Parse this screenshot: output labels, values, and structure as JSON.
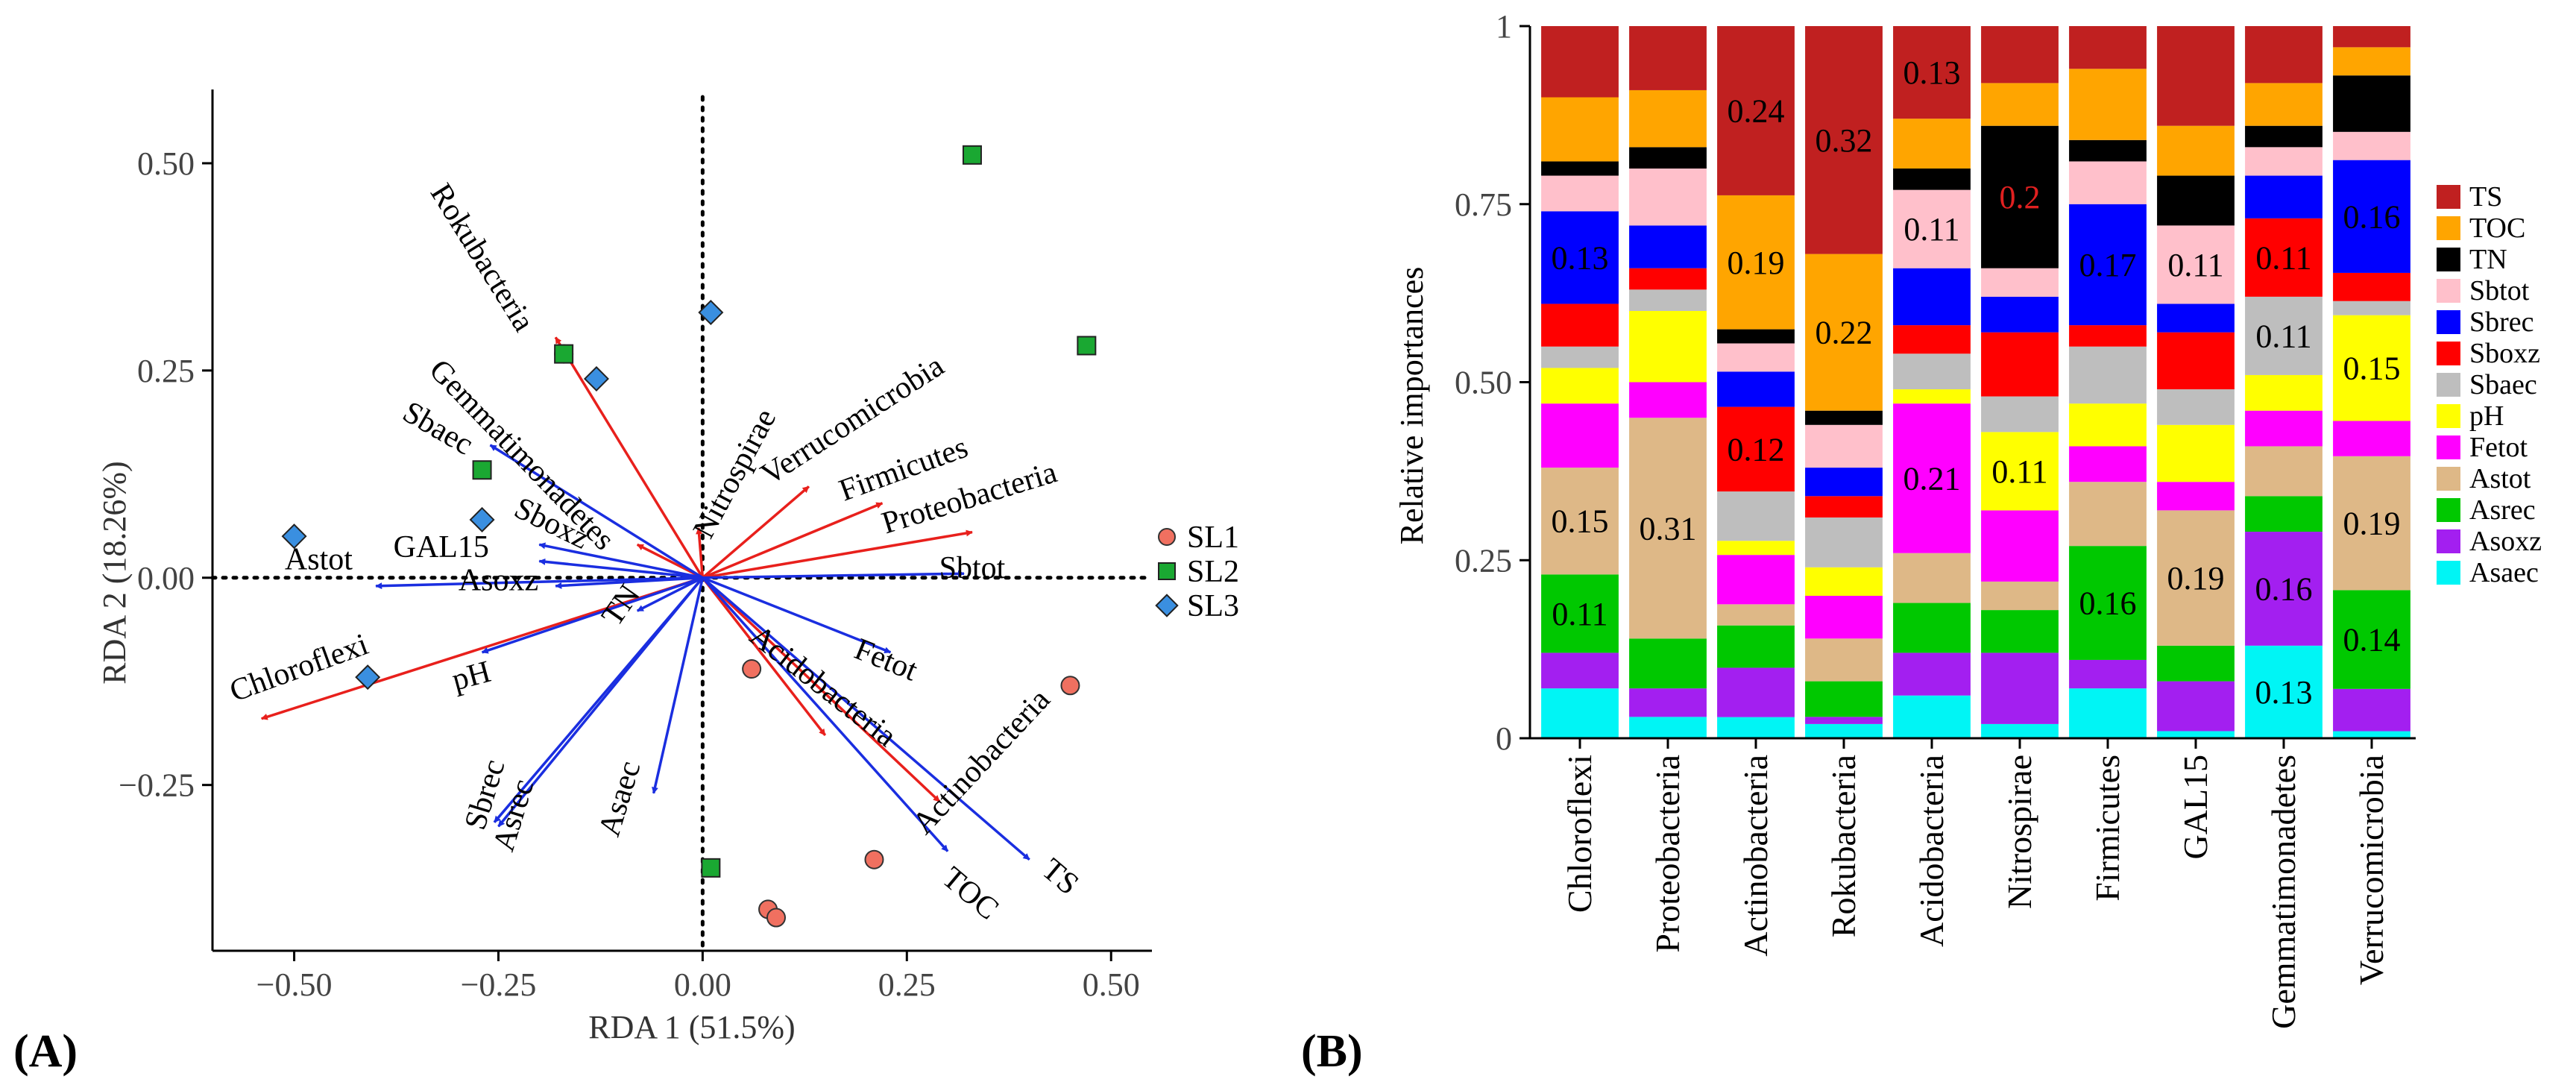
{
  "panels": {
    "a_label": "(A)",
    "b_label": "(B)"
  },
  "colors": {
    "species_arrow": "#e8201c",
    "env_arrow": "#1a2ee0",
    "SL1": "#f07060",
    "SL2": "#1aa832",
    "SL3": "#3a8fe0"
  },
  "chart_data": [
    {
      "type": "scatter",
      "xlabel": "RDA 1 (51.5%)",
      "ylabel": "RDA 2 (18.26%)",
      "xlim": [
        -0.6,
        0.55
      ],
      "ylim": [
        -0.45,
        0.58
      ],
      "xticks": [
        -0.5,
        -0.25,
        0.0,
        0.25,
        0.5
      ],
      "xtick_labels": [
        "−0.50",
        "−0.25",
        "0.00",
        "0.25",
        "0.50"
      ],
      "yticks": [
        -0.25,
        0.0,
        0.25,
        0.5
      ],
      "ytick_labels": [
        "−0.25",
        "0.00",
        "0.25",
        "0.50"
      ],
      "zero_lines": "dotted",
      "legend": {
        "position": "right",
        "entries": [
          {
            "name": "SL1",
            "shape": "circle",
            "color": "#f07060"
          },
          {
            "name": "SL2",
            "shape": "square",
            "color": "#1aa832"
          },
          {
            "name": "SL3",
            "shape": "diamond",
            "color": "#3a8fe0"
          }
        ]
      },
      "points": [
        {
          "group": "SL1",
          "x": -0.17,
          "y": 0.27
        },
        {
          "group": "SL1",
          "x": 0.06,
          "y": -0.11
        },
        {
          "group": "SL1",
          "x": 0.08,
          "y": -0.4
        },
        {
          "group": "SL1",
          "x": 0.09,
          "y": -0.41
        },
        {
          "group": "SL1",
          "x": 0.21,
          "y": -0.34
        },
        {
          "group": "SL1",
          "x": 0.45,
          "y": -0.13
        },
        {
          "group": "SL2",
          "x": -0.17,
          "y": 0.27
        },
        {
          "group": "SL2",
          "x": -0.27,
          "y": 0.13
        },
        {
          "group": "SL2",
          "x": 0.33,
          "y": 0.51
        },
        {
          "group": "SL2",
          "x": 0.47,
          "y": 0.28
        },
        {
          "group": "SL2",
          "x": 0.01,
          "y": -0.35
        },
        {
          "group": "SL3",
          "x": -0.5,
          "y": 0.05
        },
        {
          "group": "SL3",
          "x": -0.27,
          "y": 0.07
        },
        {
          "group": "SL3",
          "x": -0.13,
          "y": 0.24
        },
        {
          "group": "SL3",
          "x": 0.01,
          "y": 0.32
        },
        {
          "group": "SL3",
          "x": -0.41,
          "y": -0.12
        }
      ],
      "species_arrows": [
        {
          "name": "Rokubacteria",
          "x": -0.18,
          "y": 0.29,
          "lx": -0.28,
          "ly": 0.38,
          "rot": 58
        },
        {
          "name": "Gemmatimonadetes",
          "x": -0.08,
          "y": 0.04,
          "lx": -0.23,
          "ly": 0.14,
          "rot": 46
        },
        {
          "name": "Nitrospirae",
          "x": -0.005,
          "y": 0.06,
          "lx": 0.05,
          "ly": 0.12,
          "rot": -62
        },
        {
          "name": "Verrucomicrobia",
          "x": 0.13,
          "y": 0.11,
          "lx": 0.19,
          "ly": 0.18,
          "rot": -33
        },
        {
          "name": "Firmicutes",
          "x": 0.22,
          "y": 0.09,
          "lx": 0.25,
          "ly": 0.12,
          "rot": -20
        },
        {
          "name": "Proteobacteria",
          "x": 0.33,
          "y": 0.055,
          "lx": 0.33,
          "ly": 0.085,
          "rot": -17
        },
        {
          "name": "Acidobacteria",
          "x": 0.15,
          "y": -0.19,
          "lx": 0.14,
          "ly": -0.14,
          "rot": 38
        },
        {
          "name": "Actinobacteria",
          "x": 0.29,
          "y": -0.27,
          "lx": 0.35,
          "ly": -0.23,
          "rot": -47
        },
        {
          "name": "Chloroflexi",
          "x": -0.54,
          "y": -0.17,
          "lx": -0.49,
          "ly": -0.12,
          "rot": -20
        }
      ],
      "env_arrows": [
        {
          "name": "Sbaec",
          "x": -0.26,
          "y": 0.16,
          "lx": -0.33,
          "ly": 0.17,
          "rot": 30
        },
        {
          "name": "Sboxz",
          "x": -0.2,
          "y": 0.04,
          "lx": -0.19,
          "ly": 0.055,
          "rot": 26
        },
        {
          "name": "GAL15",
          "x": -0.2,
          "y": 0.02,
          "lx": -0.32,
          "ly": 0.025,
          "rot": 0
        },
        {
          "name": "Astot",
          "x": -0.4,
          "y": -0.01,
          "lx": -0.47,
          "ly": 0.01,
          "rot": 0
        },
        {
          "name": "Asoxz",
          "x": -0.18,
          "y": -0.01,
          "lx": -0.25,
          "ly": -0.015,
          "rot": 0
        },
        {
          "name": "TN",
          "x": -0.08,
          "y": -0.04,
          "lx": -0.09,
          "ly": -0.04,
          "rot": -55
        },
        {
          "name": "pH",
          "x": -0.27,
          "y": -0.09,
          "lx": -0.28,
          "ly": -0.13,
          "rot": -15
        },
        {
          "name": "Sbrec",
          "x": -0.255,
          "y": -0.295,
          "lx": -0.255,
          "ly": -0.265,
          "rot": -73
        },
        {
          "name": "Asrec",
          "x": -0.25,
          "y": -0.3,
          "lx": -0.22,
          "ly": -0.29,
          "rot": -73
        },
        {
          "name": "Asaec",
          "x": -0.06,
          "y": -0.26,
          "lx": -0.09,
          "ly": -0.27,
          "rot": -73
        },
        {
          "name": "Sbtot",
          "x": 0.32,
          "y": 0.005,
          "lx": 0.33,
          "ly": 0.0,
          "rot": 0
        },
        {
          "name": "Fetot",
          "x": 0.23,
          "y": -0.09,
          "lx": 0.22,
          "ly": -0.11,
          "rot": 22
        },
        {
          "name": "TOC",
          "x": 0.3,
          "y": -0.33,
          "lx": 0.32,
          "ly": -0.39,
          "rot": 40
        },
        {
          "name": "TS",
          "x": 0.4,
          "y": -0.34,
          "lx": 0.43,
          "ly": -0.37,
          "rot": 40
        }
      ]
    },
    {
      "type": "bar",
      "stacked": true,
      "ylabel": "Relative importances",
      "ylim": [
        0,
        1
      ],
      "yticks": [
        0,
        0.25,
        0.5,
        0.75,
        1
      ],
      "ytick_labels": [
        "0",
        "0.25",
        "0.50",
        "0.75",
        "1"
      ],
      "legend": {
        "position": "right"
      },
      "categories": [
        "Chloroflexi",
        "Proteobacteria",
        "Actinobacteria",
        "Rokubacteria",
        "Acidobacteria",
        "Nitrospirae",
        "Firmicutes",
        "GAL15",
        "Gemmatimonadetes",
        "Verrucomicrobia"
      ],
      "series": [
        {
          "name": "Asaec",
          "color": "#00f5f5",
          "values": [
            0.07,
            0.03,
            0.03,
            0.02,
            0.06,
            0.02,
            0.07,
            0.01,
            0.13,
            0.01
          ]
        },
        {
          "name": "Asoxz",
          "color": "#a31ff0",
          "values": [
            0.05,
            0.04,
            0.07,
            0.01,
            0.06,
            0.1,
            0.04,
            0.07,
            0.16,
            0.06
          ]
        },
        {
          "name": "Asrec",
          "color": "#00c800",
          "values": [
            0.11,
            0.07,
            0.06,
            0.05,
            0.07,
            0.06,
            0.16,
            0.05,
            0.05,
            0.14
          ]
        },
        {
          "name": "Astot",
          "color": "#deb887",
          "values": [
            0.15,
            0.31,
            0.03,
            0.06,
            0.07,
            0.04,
            0.09,
            0.19,
            0.07,
            0.19
          ]
        },
        {
          "name": "Fetot",
          "color": "#ff00ff",
          "values": [
            0.09,
            0.05,
            0.07,
            0.06,
            0.21,
            0.1,
            0.05,
            0.04,
            0.05,
            0.05
          ]
        },
        {
          "name": "pH",
          "color": "#ffff00",
          "values": [
            0.05,
            0.1,
            0.02,
            0.04,
            0.02,
            0.11,
            0.06,
            0.08,
            0.05,
            0.15
          ]
        },
        {
          "name": "Sbaec",
          "color": "#bebebe",
          "values": [
            0.03,
            0.03,
            0.07,
            0.07,
            0.05,
            0.05,
            0.08,
            0.05,
            0.11,
            0.02
          ]
        },
        {
          "name": "Sboxz",
          "color": "#ff0000",
          "values": [
            0.06,
            0.03,
            0.12,
            0.03,
            0.04,
            0.09,
            0.03,
            0.08,
            0.11,
            0.04
          ]
        },
        {
          "name": "Sbrec",
          "color": "#0000ff",
          "values": [
            0.13,
            0.06,
            0.05,
            0.04,
            0.08,
            0.05,
            0.17,
            0.04,
            0.06,
            0.16
          ]
        },
        {
          "name": "Sbtot",
          "color": "#ffc0cb",
          "values": [
            0.05,
            0.08,
            0.04,
            0.06,
            0.11,
            0.04,
            0.06,
            0.11,
            0.04,
            0.04
          ]
        },
        {
          "name": "TN",
          "color": "#000000",
          "values": [
            0.02,
            0.03,
            0.02,
            0.02,
            0.03,
            0.2,
            0.03,
            0.07,
            0.03,
            0.08
          ]
        },
        {
          "name": "TOC",
          "color": "#ffa500",
          "values": [
            0.09,
            0.08,
            0.19,
            0.22,
            0.07,
            0.06,
            0.1,
            0.07,
            0.06,
            0.04
          ]
        },
        {
          "name": "TS",
          "color": "#c02020",
          "values": [
            0.1,
            0.09,
            0.24,
            0.32,
            0.13,
            0.08,
            0.06,
            0.14,
            0.08,
            0.03
          ]
        }
      ],
      "legend_order": [
        "TS",
        "TOC",
        "TN",
        "Sbtot",
        "Sbrec",
        "Sboxz",
        "Sbaec",
        "pH",
        "Fetot",
        "Astot",
        "Asrec",
        "Asoxz",
        "Asaec"
      ],
      "data_labels": [
        {
          "category": "Chloroflexi",
          "series": "Sbrec",
          "text": "0.13"
        },
        {
          "category": "Chloroflexi",
          "series": "Astot",
          "text": "0.15"
        },
        {
          "category": "Chloroflexi",
          "series": "Asrec",
          "text": "0.11"
        },
        {
          "category": "Proteobacteria",
          "series": "Astot",
          "text": "0.31"
        },
        {
          "category": "Actinobacteria",
          "series": "TS",
          "text": "0.24"
        },
        {
          "category": "Actinobacteria",
          "series": "TOC",
          "text": "0.19"
        },
        {
          "category": "Actinobacteria",
          "series": "Sboxz",
          "text": "0.12"
        },
        {
          "category": "Rokubacteria",
          "series": "TS",
          "text": "0.32"
        },
        {
          "category": "Rokubacteria",
          "series": "TOC",
          "text": "0.22"
        },
        {
          "category": "Acidobacteria",
          "series": "TS",
          "text": "0.13"
        },
        {
          "category": "Acidobacteria",
          "series": "Sbtot",
          "text": "0.11"
        },
        {
          "category": "Acidobacteria",
          "series": "Fetot",
          "text": "0.21"
        },
        {
          "category": "Nitrospirae",
          "series": "TN",
          "text": "0.2",
          "color": "#e02020"
        },
        {
          "category": "Nitrospirae",
          "series": "pH",
          "text": "0.11"
        },
        {
          "category": "Firmicutes",
          "series": "Sbrec",
          "text": "0.17"
        },
        {
          "category": "Firmicutes",
          "series": "Asrec",
          "text": "0.16"
        },
        {
          "category": "GAL15",
          "series": "Sbtot",
          "text": "0.11"
        },
        {
          "category": "GAL15",
          "series": "Astot",
          "text": "0.19"
        },
        {
          "category": "Gemmatimonadetes",
          "series": "Sboxz",
          "text": "0.11"
        },
        {
          "category": "Gemmatimonadetes",
          "series": "Sbaec",
          "text": "0.11"
        },
        {
          "category": "Gemmatimonadetes",
          "series": "Asoxz",
          "text": "0.16"
        },
        {
          "category": "Gemmatimonadetes",
          "series": "Asaec",
          "text": "0.13"
        },
        {
          "category": "Verrucomicrobia",
          "series": "Sbrec",
          "text": "0.16"
        },
        {
          "category": "Verrucomicrobia",
          "series": "pH",
          "text": "0.15"
        },
        {
          "category": "Verrucomicrobia",
          "series": "Astot",
          "text": "0.19"
        },
        {
          "category": "Verrucomicrobia",
          "series": "Asrec",
          "text": "0.14"
        }
      ]
    }
  ]
}
